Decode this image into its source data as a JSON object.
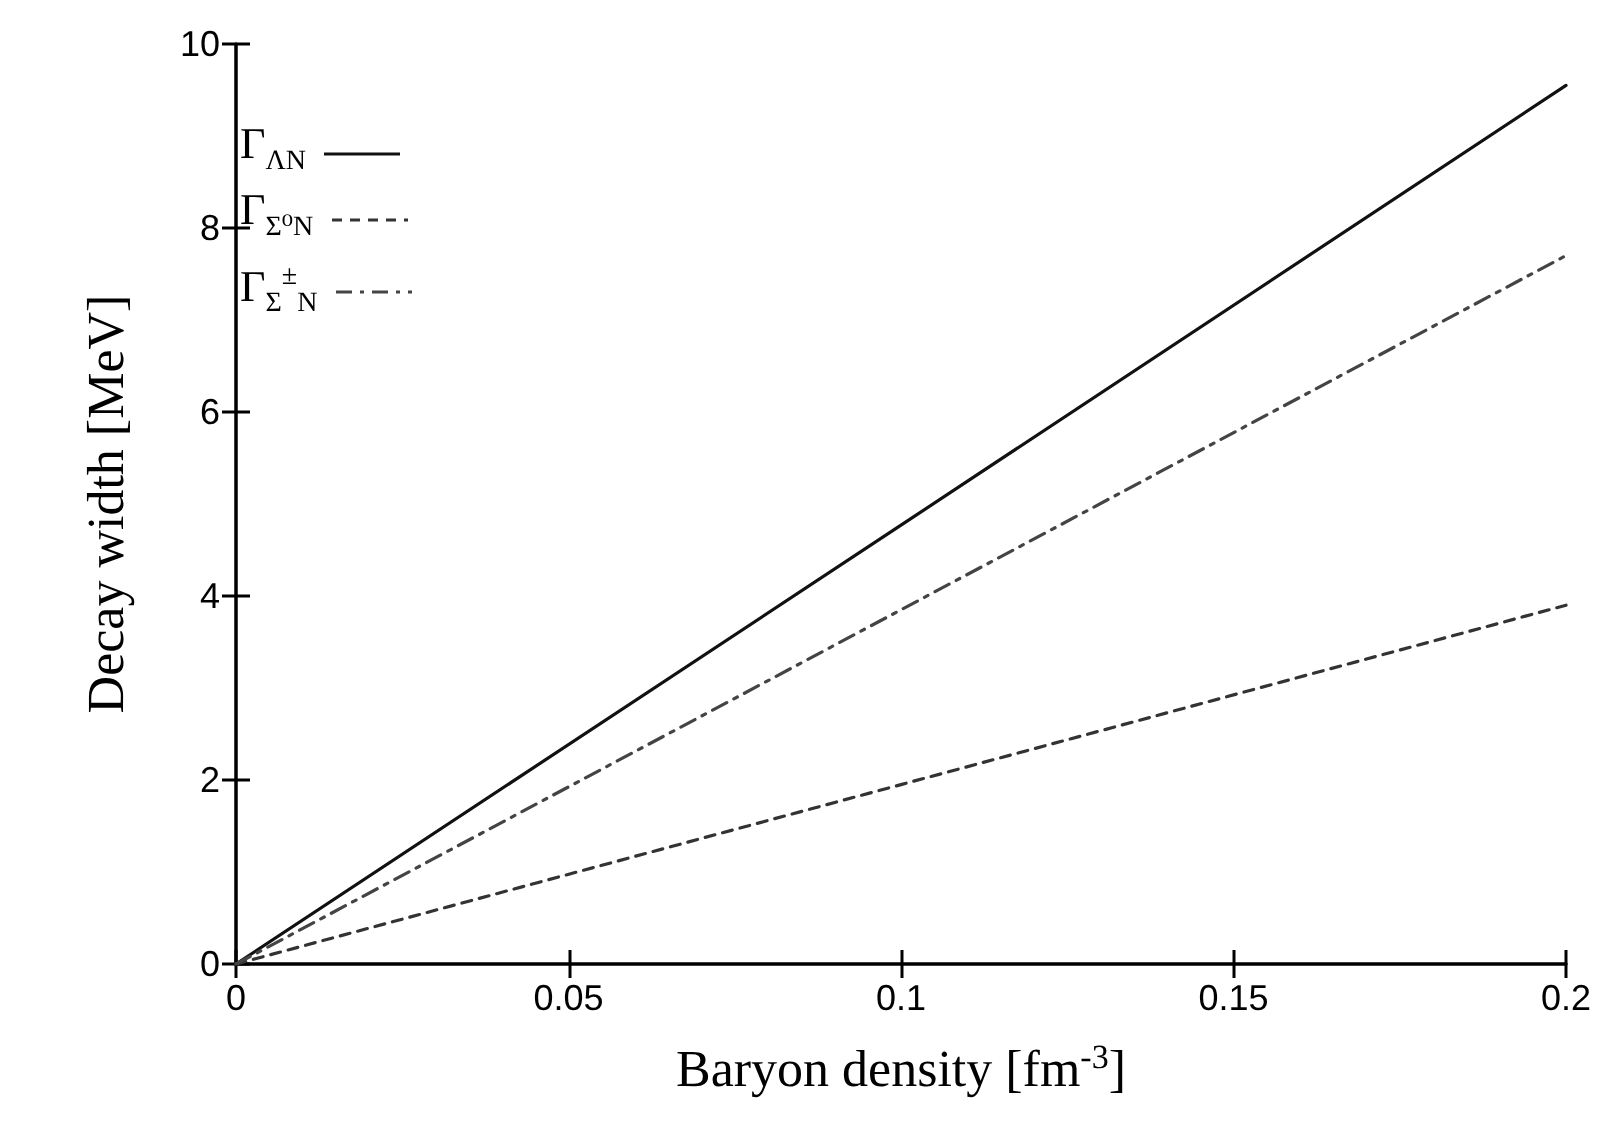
{
  "chart_data": {
    "type": "line",
    "xlabel": "Baryon density [fm$^{-3}$]",
    "ylabel": "Decay width [MeV]",
    "x": [
      0,
      0.1,
      0.2
    ],
    "series": [
      {
        "name": "Γ$_{ΛN}$",
        "color": "#111111",
        "line_style": "solid",
        "values": [
          0,
          4.77,
          9.55
        ]
      },
      {
        "name": "Γ$_{Σ⁰N}$",
        "color": "#333333",
        "line_style": "dashed",
        "values": [
          0,
          1.95,
          3.9
        ]
      },
      {
        "name": "Γ$_{Σ}$$^{±}$$_{N}$",
        "color": "#444444",
        "line_style": "dashdot",
        "values": [
          0,
          3.85,
          7.7
        ]
      }
    ],
    "xlim": [
      0,
      0.2
    ],
    "xticks": [
      0,
      0.05,
      0.1,
      0.15,
      0.2
    ],
    "ylim": [
      0,
      10
    ],
    "yticks": [
      0,
      2,
      4,
      6,
      8,
      10
    ],
    "grid": false,
    "legend": "top left",
    "marker": "none"
  }
}
